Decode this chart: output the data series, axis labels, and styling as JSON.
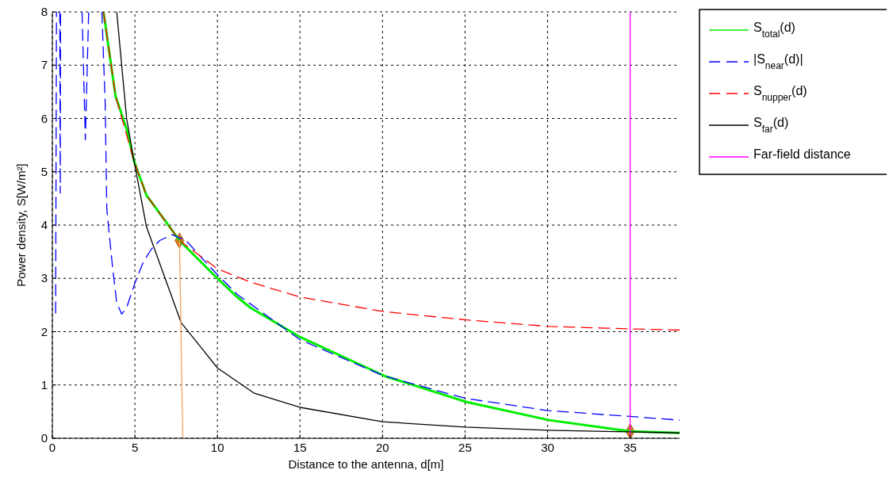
{
  "chart_data": {
    "type": "line",
    "xlabel": "Distance to the antenna, d[m]",
    "ylabel": "Power density, S[W/m²]",
    "xlim": [
      0,
      38
    ],
    "ylim": [
      0,
      8
    ],
    "xticks": [
      0,
      5,
      10,
      15,
      20,
      25,
      30,
      35
    ],
    "yticks": [
      0,
      1,
      2,
      3,
      4,
      5,
      6,
      7,
      8
    ],
    "grid": true,
    "legend": "right",
    "series": [
      {
        "name": "S$_{total}$(d)",
        "color": "#00ee00",
        "line_style": "solid",
        "x": [
          3.1,
          3.83,
          4.5,
          4.95,
          5.7,
          7.1,
          7.7,
          10,
          11.2,
          12,
          15,
          20.2,
          25.1,
          30.1,
          35,
          38
        ],
        "values": [
          8,
          6.42,
          5.8,
          5.2,
          4.56,
          3.97,
          3.71,
          3.0,
          2.65,
          2.45,
          1.9,
          1.16,
          0.68,
          0.34,
          0.13,
          0.1
        ]
      },
      {
        "name": "|S$_{near}$(d)|",
        "color": "#0000ff",
        "line_style": "dashed",
        "x": [
          0.2,
          0.25,
          0.3,
          0.45,
          0.48,
          0.5,
          0.6,
          1.8,
          2.0,
          2.2,
          2.5,
          3.0,
          3.2,
          3.3,
          3.65,
          3.9,
          4.2,
          4.5,
          5,
          5.5,
          6,
          6.5,
          7.25,
          8.1,
          9,
          10,
          11.2,
          15,
          20,
          25,
          30,
          35,
          38
        ],
        "values": [
          2.35,
          8,
          null,
          8,
          4.6,
          8,
          null,
          8,
          5.6,
          8,
          null,
          8,
          6.3,
          4.3,
          3.2,
          2.54,
          2.33,
          2.45,
          2.91,
          3.3,
          3.55,
          3.71,
          3.82,
          3.71,
          3.4,
          3.07,
          2.7,
          1.85,
          1.18,
          0.75,
          0.52,
          0.41,
          0.34
        ]
      },
      {
        "name": "S$_{nupper}$(d)",
        "color": "#ff0000",
        "line_style": "dashed",
        "x": [
          3.1,
          3.83,
          4.95,
          5.7,
          7.1,
          7.7,
          10,
          12,
          15,
          20,
          25.1,
          30,
          35.2,
          38
        ],
        "values": [
          8,
          6.42,
          5.2,
          4.56,
          3.97,
          3.71,
          3.18,
          2.93,
          2.65,
          2.38,
          2.22,
          2.1,
          2.05,
          2.03
        ]
      },
      {
        "name": "S$_{far}$(d)",
        "color": "#000000",
        "line_style": "solid",
        "x": [
          3.9,
          4.5,
          4.95,
          5.7,
          7.8,
          10,
          12.2,
          15,
          20,
          25,
          30,
          35,
          38
        ],
        "values": [
          8,
          6.0,
          5.2,
          3.97,
          2.17,
          1.32,
          0.85,
          0.58,
          0.31,
          0.21,
          0.15,
          0.12,
          0.1
        ]
      },
      {
        "color": "#f4a460",
        "line_style": "solid",
        "x": [
          7.7,
          7.9
        ],
        "values": [
          3.71,
          0
        ]
      },
      {
        "name": "Far-field distance",
        "color": "#ff00ff",
        "line_style": "solid",
        "x": [
          35,
          35
        ],
        "values": [
          0,
          8
        ]
      },
      {
        "type": "scatter",
        "color": "#e07b20",
        "marker": "diamond",
        "x": [
          7.7,
          35
        ],
        "values": [
          3.71,
          0.13
        ]
      }
    ]
  }
}
